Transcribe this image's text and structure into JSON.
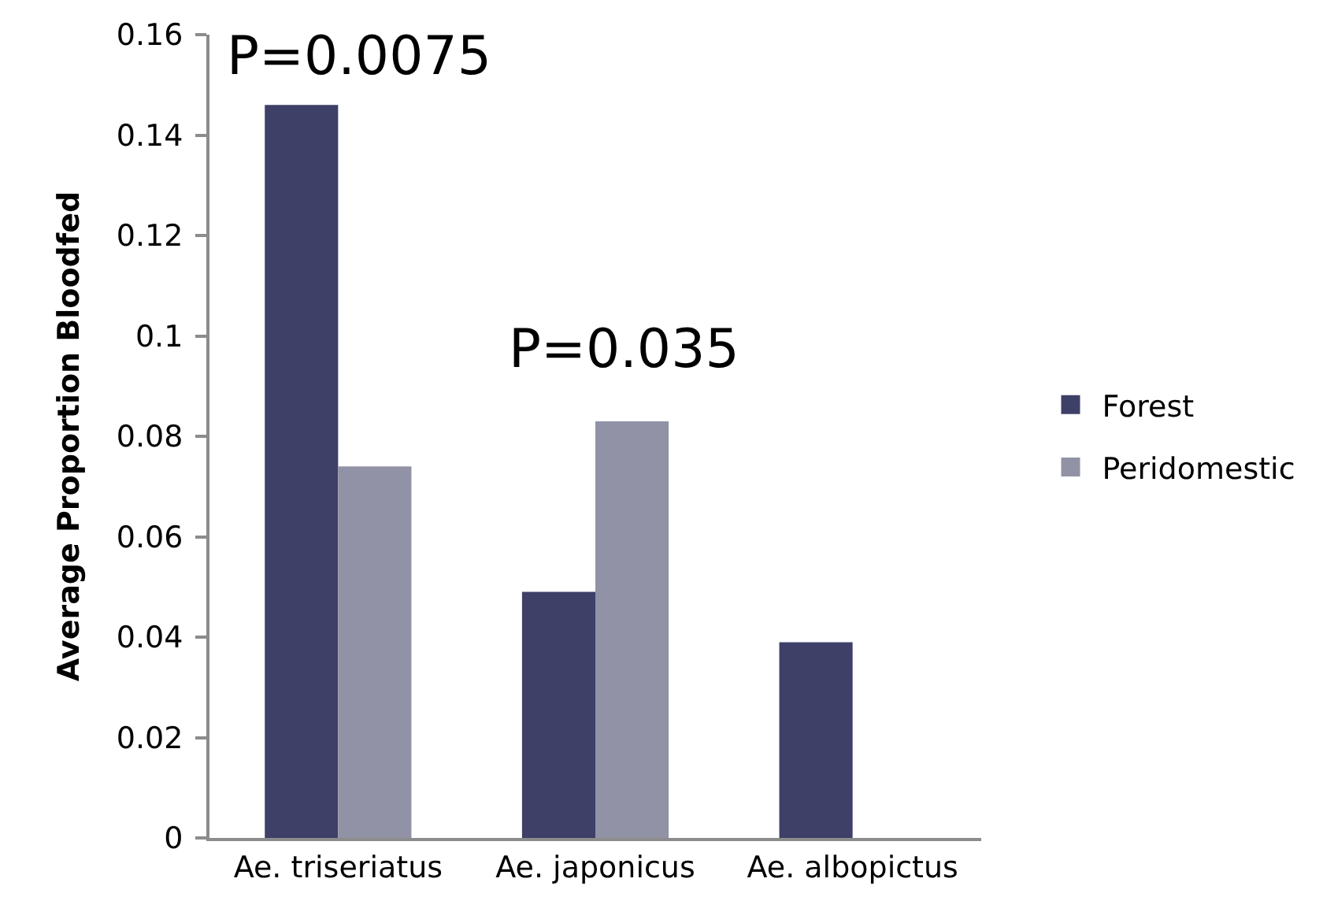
{
  "chart_data": {
    "type": "bar",
    "categories": [
      "Ae. triseriatus",
      "Ae. japonicus",
      "Ae. albopictus"
    ],
    "series": [
      {
        "name": "Forest",
        "color": "#3f4068",
        "values": [
          0.146,
          0.049,
          0.039
        ]
      },
      {
        "name": "Peridomestic",
        "color": "#9192a6",
        "values": [
          0.074,
          0.083,
          null
        ]
      }
    ],
    "ylabel": "Average Proportion Bloodfed",
    "ylim": [
      0,
      0.16
    ],
    "yticks": [
      0,
      0.02,
      0.04,
      0.06,
      0.08,
      0.1,
      0.12,
      0.14,
      0.16
    ],
    "legend": "right",
    "annotations": [
      "P=0.0075",
      "P=0.035"
    ]
  }
}
